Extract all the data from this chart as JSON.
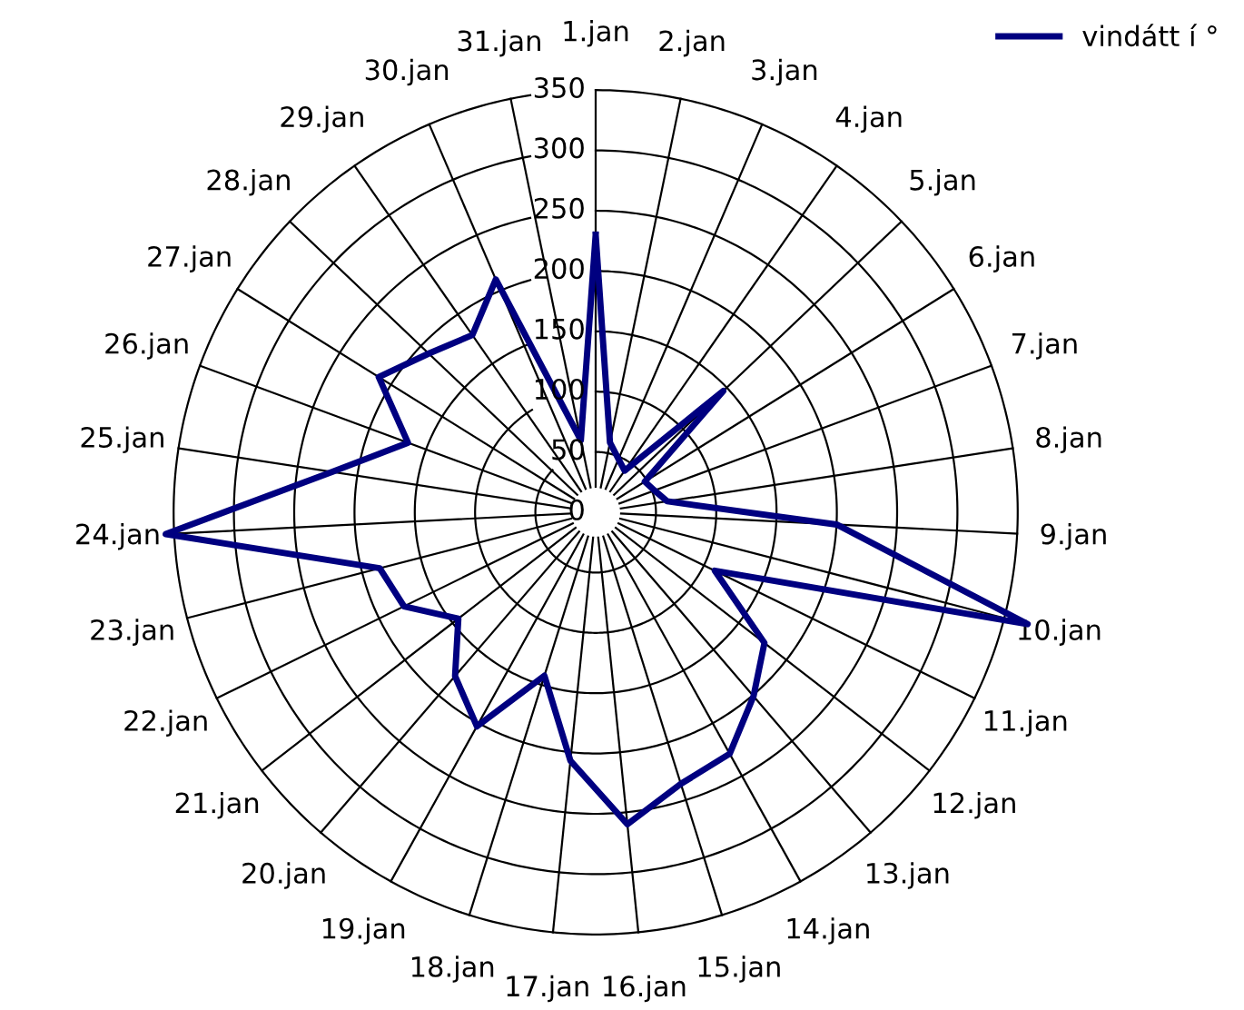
{
  "chart_data": {
    "type": "radar",
    "categories": [
      "1.jan",
      "2.jan",
      "3.jan",
      "4.jan",
      "5.jan",
      "6.jan",
      "7.jan",
      "8.jan",
      "9.jan",
      "10.jan",
      "11.jan",
      "12.jan",
      "13.jan",
      "14.jan",
      "15.jan",
      "16.jan",
      "17.jan",
      "18.jan",
      "19.jan",
      "20.jan",
      "21.jan",
      "22.jan",
      "23.jan",
      "24.jan",
      "25.jan",
      "26.jan",
      "27.jan",
      "28.jan",
      "29.jan",
      "30.jan",
      "31.jan"
    ],
    "series": [
      {
        "name": "vindátt í °",
        "color": "#000080",
        "values": [
          230,
          59,
          48,
          42,
          146,
          48,
          52,
          60,
          200,
          370,
          110,
          177,
          201,
          229,
          236,
          260,
          207,
          142,
          203,
          179,
          144,
          177,
          185,
          357,
          221,
          166,
          212,
          191,
          179,
          210,
          61
        ]
      }
    ],
    "ylim": [
      0,
      375
    ],
    "yticks": [
      0,
      50,
      100,
      150,
      200,
      250,
      300,
      350
    ],
    "grid": true,
    "legend": "top right",
    "marker": "none",
    "line_style": "solid"
  }
}
